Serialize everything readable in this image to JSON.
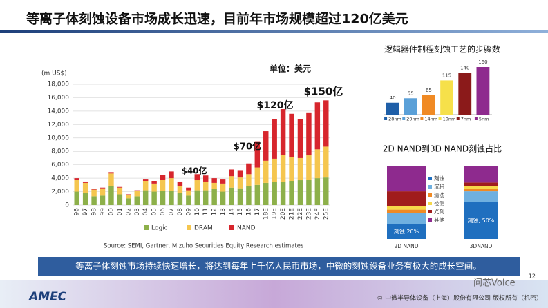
{
  "header": {
    "title": "等离子体刻蚀设备市场成长迅速，目前年市场规模超过120亿美元"
  },
  "chart_data": [
    {
      "type": "stacked_bar",
      "y_label": "(m US$)",
      "unit_note": "单位：美元",
      "annotations": [
        "$40亿",
        "$70亿",
        "$120亿",
        "$150亿"
      ],
      "source": "Source: SEMI, Gartner, Mizuho Securities Equity Research estimates",
      "categories": [
        "96",
        "97",
        "98",
        "99",
        "00",
        "01",
        "02",
        "03",
        "04",
        "05",
        "06",
        "07",
        "08",
        "09",
        "10",
        "11",
        "12",
        "13",
        "14",
        "15",
        "16",
        "17",
        "18E",
        "19E",
        "20E",
        "21E",
        "22E",
        "23E",
        "24E",
        "25E"
      ],
      "series": [
        {
          "name": "Logic",
          "color": "#8db04a",
          "values": [
            2000,
            1800,
            1300,
            1400,
            2800,
            1600,
            1000,
            1300,
            2200,
            2000,
            2100,
            2100,
            1800,
            1400,
            2200,
            2200,
            2400,
            2000,
            2600,
            2500,
            2800,
            3000,
            3300,
            3400,
            3500,
            3600,
            3700,
            3800,
            4000,
            4100
          ]
        },
        {
          "name": "DRAM",
          "color": "#f5c64f",
          "values": [
            1800,
            1500,
            1000,
            1100,
            1900,
            1000,
            500,
            800,
            1400,
            1200,
            1700,
            1900,
            1000,
            800,
            1500,
            1300,
            900,
            1200,
            1700,
            1600,
            1800,
            2600,
            3300,
            3500,
            4000,
            3500,
            3300,
            3600,
            4300,
            4600
          ]
        },
        {
          "name": "NAND",
          "color": "#d7262d",
          "values": [
            200,
            200,
            100,
            100,
            200,
            100,
            100,
            100,
            300,
            400,
            700,
            1000,
            700,
            400,
            900,
            900,
            700,
            700,
            1000,
            1100,
            1600,
            3900,
            4400,
            5900,
            6800,
            6500,
            5800,
            6400,
            7000,
            6900
          ]
        }
      ],
      "ylim": [
        0,
        18000
      ],
      "yticks": [
        0,
        {
          "value": 2000,
          "label": "2,000"
        },
        {
          "value": 4000,
          "label": "4,000"
        },
        {
          "value": 6000,
          "label": "6,000"
        },
        {
          "value": 8000,
          "label": "8,000"
        },
        {
          "value": 10000,
          "label": "10,000"
        },
        {
          "value": 12000,
          "label": "12,000"
        },
        {
          "value": 14000,
          "label": "14,000"
        },
        {
          "value": 16000,
          "label": "16,000"
        },
        {
          "value": 18000,
          "label": "18,000"
        }
      ],
      "grid": true
    },
    {
      "type": "bar",
      "title": "逻辑器件制程刻蚀工艺的步骤数",
      "categories": [
        "28nm",
        "20nm",
        "14nm",
        "10nm",
        "7nm",
        "5nm"
      ],
      "values": [
        40,
        55,
        65,
        115,
        140,
        160
      ],
      "colors": [
        "#1f5fa8",
        "#5aa0d8",
        "#f08a24",
        "#f6e04a",
        "#8b1a1a",
        "#8e2a8e"
      ],
      "ylim": [
        0,
        160
      ]
    },
    {
      "type": "stacked_bar",
      "title": "2D NAND到3D NAND刻蚀占比",
      "categories": [
        "2D NAND",
        "3DNAND"
      ],
      "series": [
        {
          "name": "刻蚀",
          "color": "#1f6fbf",
          "values": [
            20,
            50
          ],
          "value_labels": [
            "刻蚀 20%",
            "刻蚀, 50%"
          ]
        },
        {
          "name": "沉积",
          "color": "#6fb0e0",
          "values": [
            15,
            15
          ]
        },
        {
          "name": "清洗",
          "color": "#f08a24",
          "values": [
            5,
            3
          ]
        },
        {
          "name": "检测",
          "color": "#f6d84a",
          "values": [
            5,
            4
          ]
        },
        {
          "name": "光刻",
          "color": "#a01c1c",
          "values": [
            20,
            5
          ]
        },
        {
          "name": "其他",
          "color": "#8e2a8e",
          "values": [
            35,
            23
          ]
        }
      ],
      "ylim": [
        0,
        100
      ]
    }
  ],
  "banner": {
    "text": "等离子体刻蚀市场持续快速增长，将达到每年上千亿人民币市场，中微的刻蚀设备业务有极大的成长空间。"
  },
  "footer": {
    "logo": "AMEC",
    "copyright": "© 中微半导体设备（上海）股份有限公司 版权所有（机密）",
    "page": "12",
    "watermark": "问芯Voice"
  }
}
